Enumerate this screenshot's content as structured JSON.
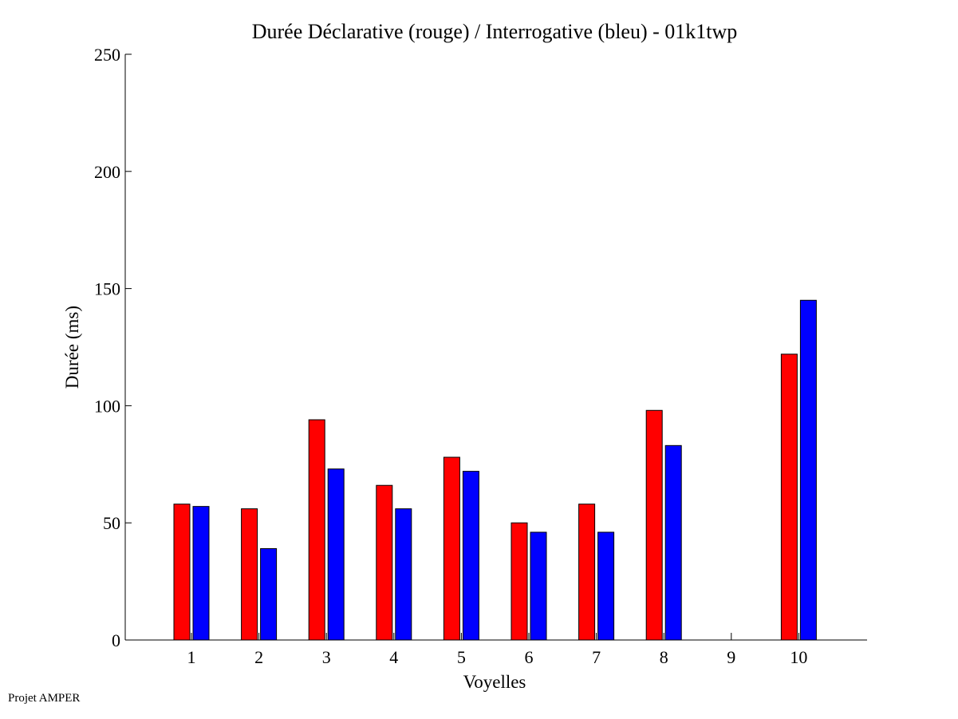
{
  "chart_data": {
    "type": "bar",
    "title": "Durée Déclarative (rouge) / Interrogative (bleu) - 01k1twp",
    "xlabel": "Voyelles",
    "ylabel": "Durée (ms)",
    "categories": [
      "1",
      "2",
      "3",
      "4",
      "5",
      "6",
      "7",
      "8",
      "9",
      "10"
    ],
    "ylim": [
      0,
      250
    ],
    "yticks": [
      0,
      50,
      100,
      150,
      200,
      250
    ],
    "grid": false,
    "series": [
      {
        "color": "#ff0000",
        "values": [
          58,
          56,
          94,
          66,
          78,
          50,
          58,
          98,
          0,
          122
        ]
      },
      {
        "color": "#0000ff",
        "values": [
          57,
          39,
          73,
          56,
          72,
          46,
          46,
          83,
          0,
          145
        ]
      }
    ]
  },
  "footer": {
    "text": "Projet AMPER"
  }
}
